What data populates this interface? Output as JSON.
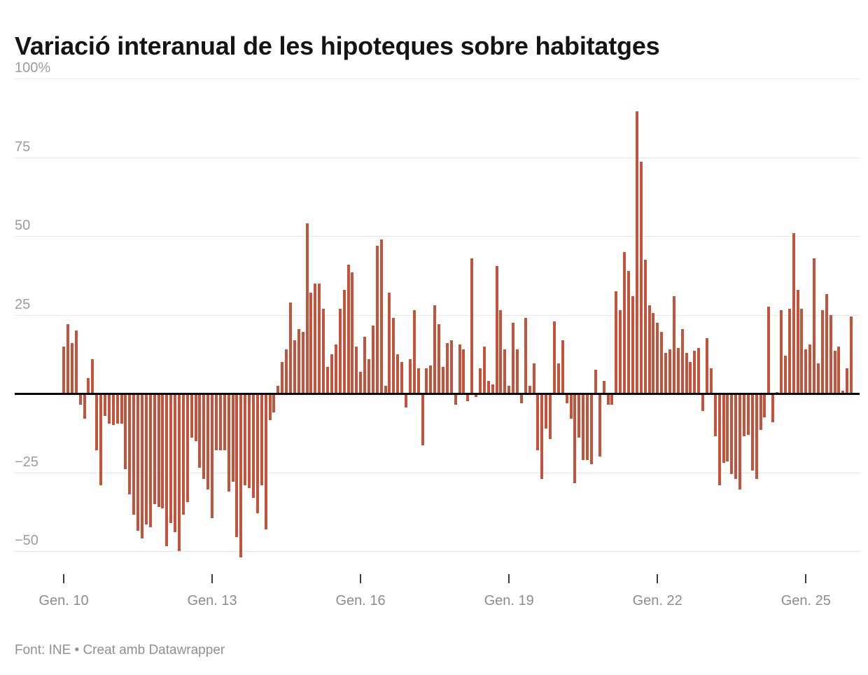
{
  "title": "Variació interanual de les hipoteques sobre habitatges",
  "footer": "Font: INE • Creat amb Datawrapper",
  "colors": {
    "bar": "#c5523a",
    "baseline": "#000000",
    "gridline": "#e7e7e7",
    "axis_text": "#9c9c9c",
    "title_text": "#141414",
    "footer_text": "#909090"
  },
  "chart_data": {
    "type": "bar",
    "title": "Variació interanual de les hipoteques sobre habitatges",
    "unit": "%",
    "source": "Font: INE",
    "x_start": "Gen. 2010",
    "x_frequency": "monthly",
    "xlabel": "",
    "ylabel": "",
    "ylim": [
      -60,
      105
    ],
    "grid": true,
    "y_ticks": [
      100,
      75,
      50,
      25,
      -25,
      -50
    ],
    "y_tick_labels": [
      "100%",
      "75",
      "50",
      "25",
      "−25",
      "−50"
    ],
    "x_tick_indices": [
      0,
      36,
      72,
      108,
      144,
      180
    ],
    "x_tick_labels": [
      "Gen. 10",
      "Gen. 13",
      "Gen. 16",
      "Gen. 19",
      "Gen. 22",
      "Gen. 25"
    ],
    "values": [
      15,
      22,
      16,
      20,
      -3.5,
      -8,
      5,
      11,
      -18,
      -29,
      -7,
      -9.5,
      -10,
      -9.5,
      -9.5,
      -24,
      -32,
      -38.5,
      -43.5,
      -46,
      -41.5,
      -42.5,
      -35,
      -36,
      -36.5,
      -48.5,
      -41,
      -44,
      -50,
      -38.5,
      -34.5,
      -14,
      -15,
      -23.5,
      -27,
      -30.5,
      -39.5,
      -18,
      -18,
      -18,
      -31,
      -28,
      -45.5,
      -52,
      -29,
      -30,
      -33,
      -38,
      -29,
      -43,
      -8.5,
      -6,
      2.5,
      10,
      14,
      29,
      17,
      20.5,
      19.5,
      54,
      32,
      35,
      35,
      27,
      8.5,
      12.5,
      15.5,
      27,
      33,
      41,
      38.5,
      15,
      7,
      18,
      11,
      21.5,
      47,
      49,
      2.5,
      32,
      24,
      12.5,
      10,
      -4.5,
      11,
      26.5,
      8,
      -16.5,
      8,
      9,
      28,
      22,
      8.5,
      16,
      17,
      -3.5,
      15.5,
      14,
      -2.5,
      43,
      -1,
      8,
      15,
      4,
      3,
      40.5,
      26.5,
      14,
      2.5,
      22.5,
      14,
      -3,
      24,
      2.5,
      9.5,
      -18,
      -27,
      -11,
      -14.5,
      23,
      9.5,
      17,
      -3,
      -8,
      -28.5,
      -14,
      -21,
      -21,
      -22.5,
      7.5,
      -20,
      4,
      -3.5,
      -3.5,
      32.5,
      26.5,
      45,
      39,
      31,
      89.5,
      73.5,
      42.5,
      28,
      25.5,
      22.5,
      19.5,
      13,
      14,
      31,
      14.5,
      20.5,
      13,
      10,
      13.5,
      14.5,
      -5.5,
      17.5,
      8,
      -13.5,
      -29,
      -22,
      -21.5,
      -25.5,
      -27,
      -30.5,
      -13.5,
      -13,
      -24.5,
      -27,
      -11.5,
      -7.5,
      27.5,
      -9,
      0.5,
      26.5,
      12,
      27,
      51,
      33,
      27,
      14,
      15.5,
      43,
      9.5,
      26.5,
      31.5,
      25,
      13.5,
      15,
      1,
      8,
      24.5
    ]
  }
}
